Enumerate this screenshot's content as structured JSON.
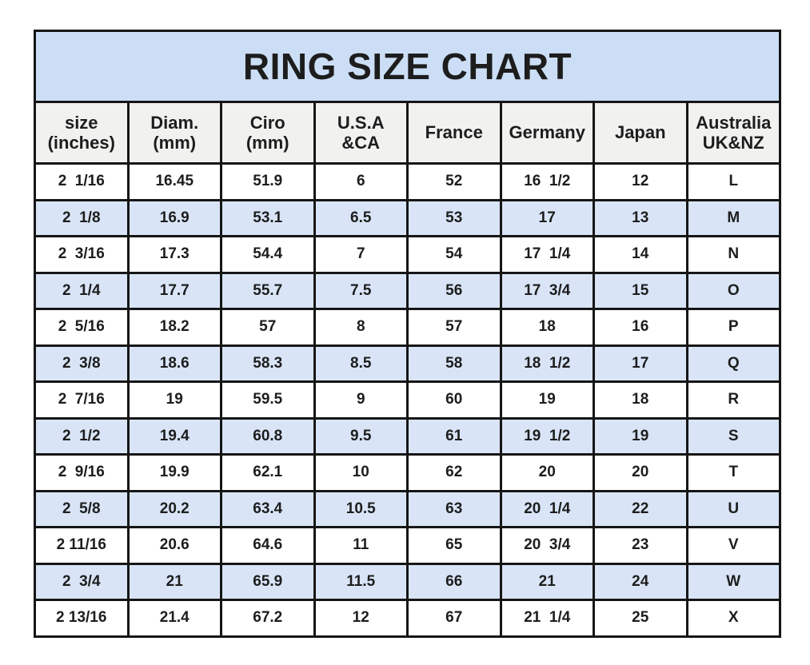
{
  "style": {
    "title_bg": "#cbdef5",
    "header_bg": "#f1f1ef",
    "row_bg": "#ffffff",
    "row_alt_bg": "#d9e5f7",
    "border_color": "#161616",
    "text_color": "#1d1d1d",
    "page_bg": "#ffffff"
  },
  "chart_data": {
    "type": "table",
    "title": "RING SIZE CHART",
    "columns": [
      "size\n(inches)",
      "Diam.\n(mm)",
      "Ciro\n(mm)",
      "U.S.A\n&CA",
      "France",
      "Germany",
      "Japan",
      "Australia\nUK&NZ"
    ],
    "rows": [
      [
        "2  1/16",
        "16.45",
        "51.9",
        "6",
        "52",
        "16  1/2",
        "12",
        "L"
      ],
      [
        "2  1/8",
        "16.9",
        "53.1",
        "6.5",
        "53",
        "17",
        "13",
        "M"
      ],
      [
        "2  3/16",
        "17.3",
        "54.4",
        "7",
        "54",
        "17  1/4",
        "14",
        "N"
      ],
      [
        "2  1/4",
        "17.7",
        "55.7",
        "7.5",
        "56",
        "17  3/4",
        "15",
        "O"
      ],
      [
        "2  5/16",
        "18.2",
        "57",
        "8",
        "57",
        "18",
        "16",
        "P"
      ],
      [
        "2  3/8",
        "18.6",
        "58.3",
        "8.5",
        "58",
        "18  1/2",
        "17",
        "Q"
      ],
      [
        "2  7/16",
        "19",
        "59.5",
        "9",
        "60",
        "19",
        "18",
        "R"
      ],
      [
        "2  1/2",
        "19.4",
        "60.8",
        "9.5",
        "61",
        "19  1/2",
        "19",
        "S"
      ],
      [
        "2  9/16",
        "19.9",
        "62.1",
        "10",
        "62",
        "20",
        "20",
        "T"
      ],
      [
        "2  5/8",
        "20.2",
        "63.4",
        "10.5",
        "63",
        "20  1/4",
        "22",
        "U"
      ],
      [
        "2 11/16",
        "20.6",
        "64.6",
        "11",
        "65",
        "20  3/4",
        "23",
        "V"
      ],
      [
        "2  3/4",
        "21",
        "65.9",
        "11.5",
        "66",
        "21",
        "24",
        "W"
      ],
      [
        "2 13/16",
        "21.4",
        "67.2",
        "12",
        "67",
        "21  1/4",
        "25",
        "X"
      ]
    ]
  }
}
